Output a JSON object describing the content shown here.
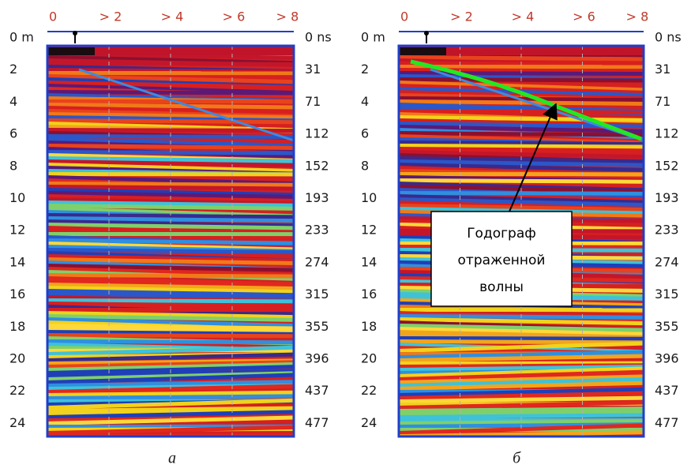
{
  "panels": [
    {
      "x_labels": [
        "0",
        "> 2",
        "> 4",
        "> 6",
        "> 8"
      ],
      "depth_labels": [
        "0 m",
        "2",
        "4",
        "6",
        "8",
        "10",
        "12",
        "14",
        "16",
        "18",
        "20",
        "22",
        "24"
      ],
      "time_labels": [
        "0 ns",
        "31",
        "71",
        "112",
        "152",
        "193",
        "233",
        "274",
        "315",
        "355",
        "396",
        "437",
        "477"
      ],
      "caption": "а"
    },
    {
      "x_labels": [
        "0",
        "> 2",
        "> 4",
        "> 6",
        "> 8"
      ],
      "depth_labels": [
        "0 m",
        "2",
        "4",
        "6",
        "8",
        "10",
        "12",
        "14",
        "16",
        "18",
        "20",
        "22",
        "24"
      ],
      "time_labels": [
        "0 ns",
        "31",
        "71",
        "112",
        "152",
        "193",
        "233",
        "274",
        "315",
        "355",
        "396",
        "437",
        "477"
      ],
      "caption": "б",
      "annotation": [
        "Годограф",
        "отраженной",
        "волны"
      ]
    }
  ]
}
